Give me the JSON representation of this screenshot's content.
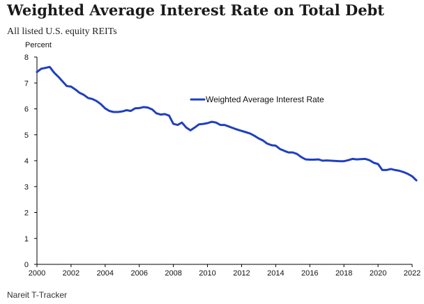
{
  "header": {
    "title": "Weighted Average Interest Rate on Total Debt",
    "subtitle": "All listed U.S. equity REITs"
  },
  "footer": {
    "source": "Nareit T-Tracker"
  },
  "colors": {
    "series": "#1f3fbf",
    "axis": "#000000"
  },
  "chart_data": {
    "type": "line",
    "title": "Weighted Average Interest Rate on Total Debt",
    "subtitle": "All listed U.S. equity REITs",
    "ylabel": "Percent",
    "xlabel": "",
    "xlim": [
      2000,
      2022
    ],
    "ylim": [
      0,
      8
    ],
    "x_ticks": [
      "2000",
      "2002",
      "2004",
      "2006",
      "2008",
      "2010",
      "2012",
      "2014",
      "2016",
      "2018",
      "2020",
      "2022"
    ],
    "y_ticks": [
      "0",
      "1",
      "2",
      "3",
      "4",
      "5",
      "6",
      "7",
      "8"
    ],
    "grid": false,
    "legend": {
      "position": "center-right"
    },
    "series": [
      {
        "name": "Weighted Average Interest Rate",
        "color": "#1f3fbf",
        "points": [
          [
            2000.0,
            7.42
          ],
          [
            2000.25,
            7.55
          ],
          [
            2000.5,
            7.58
          ],
          [
            2000.75,
            7.62
          ],
          [
            2001.0,
            7.4
          ],
          [
            2001.25,
            7.24
          ],
          [
            2001.5,
            7.06
          ],
          [
            2001.75,
            6.88
          ],
          [
            2002.0,
            6.86
          ],
          [
            2002.25,
            6.75
          ],
          [
            2002.5,
            6.62
          ],
          [
            2002.75,
            6.54
          ],
          [
            2003.0,
            6.42
          ],
          [
            2003.25,
            6.38
          ],
          [
            2003.5,
            6.3
          ],
          [
            2003.75,
            6.18
          ],
          [
            2004.0,
            6.02
          ],
          [
            2004.25,
            5.92
          ],
          [
            2004.5,
            5.88
          ],
          [
            2004.75,
            5.88
          ],
          [
            2005.0,
            5.9
          ],
          [
            2005.25,
            5.95
          ],
          [
            2005.5,
            5.92
          ],
          [
            2005.75,
            6.02
          ],
          [
            2006.0,
            6.03
          ],
          [
            2006.25,
            6.07
          ],
          [
            2006.5,
            6.05
          ],
          [
            2006.75,
            5.98
          ],
          [
            2007.0,
            5.83
          ],
          [
            2007.25,
            5.78
          ],
          [
            2007.5,
            5.8
          ],
          [
            2007.75,
            5.74
          ],
          [
            2008.0,
            5.42
          ],
          [
            2008.25,
            5.38
          ],
          [
            2008.5,
            5.47
          ],
          [
            2008.75,
            5.28
          ],
          [
            2009.0,
            5.17
          ],
          [
            2009.25,
            5.28
          ],
          [
            2009.5,
            5.4
          ],
          [
            2009.75,
            5.42
          ],
          [
            2010.0,
            5.45
          ],
          [
            2010.25,
            5.5
          ],
          [
            2010.5,
            5.47
          ],
          [
            2010.75,
            5.38
          ],
          [
            2011.0,
            5.38
          ],
          [
            2011.25,
            5.32
          ],
          [
            2011.5,
            5.26
          ],
          [
            2011.75,
            5.2
          ],
          [
            2012.0,
            5.15
          ],
          [
            2012.25,
            5.1
          ],
          [
            2012.5,
            5.05
          ],
          [
            2012.75,
            4.96
          ],
          [
            2013.0,
            4.86
          ],
          [
            2013.25,
            4.78
          ],
          [
            2013.5,
            4.66
          ],
          [
            2013.75,
            4.6
          ],
          [
            2014.0,
            4.58
          ],
          [
            2014.25,
            4.45
          ],
          [
            2014.5,
            4.38
          ],
          [
            2014.75,
            4.32
          ],
          [
            2015.0,
            4.32
          ],
          [
            2015.25,
            4.26
          ],
          [
            2015.5,
            4.14
          ],
          [
            2015.75,
            4.05
          ],
          [
            2016.0,
            4.04
          ],
          [
            2016.25,
            4.04
          ],
          [
            2016.5,
            4.05
          ],
          [
            2016.75,
            4.0
          ],
          [
            2017.0,
            4.01
          ],
          [
            2017.25,
            4.0
          ],
          [
            2017.5,
            3.99
          ],
          [
            2017.75,
            3.98
          ],
          [
            2018.0,
            3.98
          ],
          [
            2018.25,
            4.02
          ],
          [
            2018.5,
            4.07
          ],
          [
            2018.75,
            4.05
          ],
          [
            2019.0,
            4.06
          ],
          [
            2019.25,
            4.07
          ],
          [
            2019.5,
            4.02
          ],
          [
            2019.75,
            3.92
          ],
          [
            2020.0,
            3.87
          ],
          [
            2020.25,
            3.64
          ],
          [
            2020.5,
            3.64
          ],
          [
            2020.75,
            3.68
          ],
          [
            2021.0,
            3.64
          ],
          [
            2021.25,
            3.61
          ],
          [
            2021.5,
            3.56
          ],
          [
            2021.75,
            3.49
          ],
          [
            2022.0,
            3.4
          ],
          [
            2022.25,
            3.24
          ]
        ]
      }
    ]
  }
}
